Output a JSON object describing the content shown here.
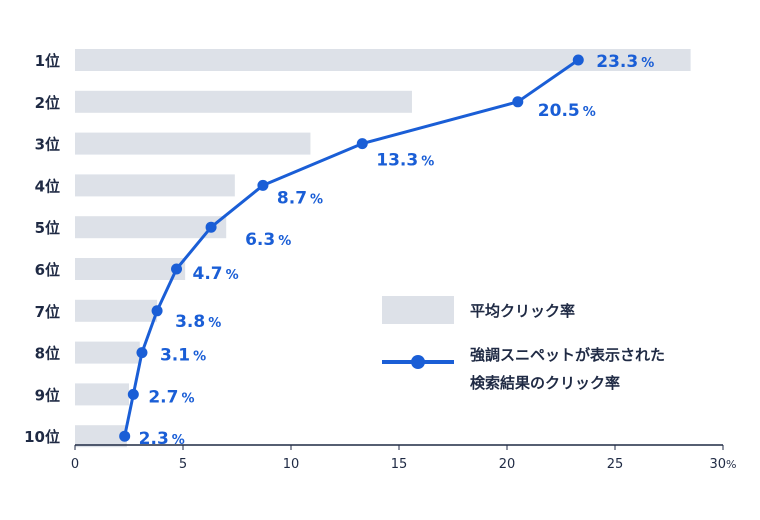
{
  "chart_data": {
    "type": "bar+line",
    "categories": [
      "1位",
      "2位",
      "3位",
      "4位",
      "5位",
      "6位",
      "7位",
      "8位",
      "9位",
      "10位"
    ],
    "series": [
      {
        "name": "平均クリック率",
        "type": "bar",
        "color": "#dde1e8",
        "values": [
          28.5,
          15.6,
          10.9,
          7.4,
          7.0,
          5.1,
          3.8,
          3.0,
          2.5,
          2.4
        ]
      },
      {
        "name": "強調スニペットが表示された検索結果のクリック率",
        "type": "line",
        "color": "#1a5ed6",
        "values": [
          23.3,
          20.5,
          13.3,
          8.7,
          6.3,
          4.7,
          3.8,
          3.1,
          2.7,
          2.3
        ],
        "labels": [
          "23.3",
          "20.5",
          "13.3",
          "8.7",
          "6.3",
          "4.7",
          "3.8",
          "3.1",
          "2.7",
          "2.3"
        ]
      }
    ],
    "xlim": [
      0,
      30
    ],
    "xticks": [
      "0",
      "5",
      "10",
      "15",
      "20",
      "25",
      "30"
    ],
    "x_unit": "%",
    "grid": false,
    "legend": {
      "placement": "right-middle",
      "line1": [
        "平均クリック率"
      ],
      "line2": [
        "強調スニペットが表示された",
        "検索結果のクリック率"
      ]
    }
  }
}
